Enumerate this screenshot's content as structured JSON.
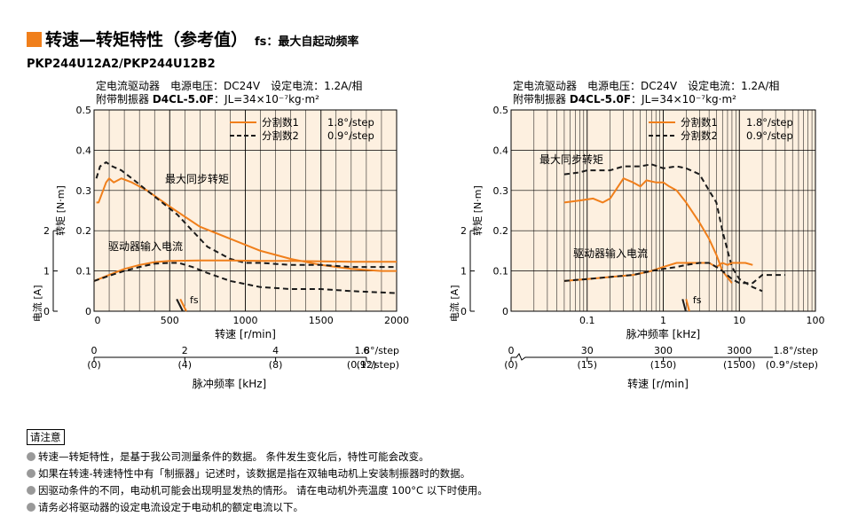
{
  "header": {
    "title": "转速—转矩特性（参考值）",
    "subtitle": "fs：最大自起动频率",
    "model": "PKP244U12A2/PKP244U12B2"
  },
  "conditions": {
    "line1": "定电流驱动器　电源电压：DC24V　设定电流：1.2A/相",
    "line2_prefix": "附带制振器",
    "line2_bold": "D4CL-5.0F",
    "line2_suffix": "：JL=34×10⁻⁷kg·m²"
  },
  "labels": {
    "torque_axis": "转矩 [N·m]",
    "current_axis": "电流 [A]",
    "speed_axis": "转速 [r/min]",
    "pulse_axis": "脉冲频率 [kHz]",
    "max_sync": "最大同步转矩",
    "driver_current": "驱动器输入电流",
    "fs": "fs",
    "legend1_name": "分割数1",
    "legend1_val": "1.8°/step",
    "legend2_name": "分割数2",
    "legend2_val": "0.9°/step"
  },
  "colors": {
    "accent": "#f07f1b",
    "plot_bg": "#fdf0e0",
    "series_solid": "#f07f1b",
    "series_dashed": "#1a1a1a"
  },
  "chart_data": [
    {
      "type": "line",
      "x_scale": "linear",
      "xlabel": "转速 [r/min]",
      "ylabel": "转矩 [N·m]",
      "xlim": [
        0,
        2000
      ],
      "ylim": [
        0,
        0.5
      ],
      "x_ticks": [
        "0",
        "500",
        "1000",
        "1500",
        "2000"
      ],
      "y_ticks": [
        "0",
        "0.1",
        "0.2",
        "0.3",
        "0.4",
        "0.5"
      ],
      "current_ticks": [
        "0",
        "1",
        "2"
      ],
      "secondary_axis": {
        "label": "脉冲频率 [kHz]",
        "ticks": [
          "0",
          "2",
          "4",
          "6"
        ],
        "ticks_sub": [
          "(0)",
          "(4)",
          "(8)",
          "(12)"
        ],
        "step_labels": [
          "1.8°/step",
          "(0.9°/step)"
        ]
      },
      "series": [
        {
          "name": "分割数1",
          "style": "solid",
          "kind": "torque",
          "x": [
            15,
            30,
            50,
            80,
            100,
            130,
            180,
            250,
            350,
            500,
            700,
            900,
            1100,
            1300,
            1500,
            1700,
            1900,
            2000
          ],
          "y": [
            0.27,
            0.27,
            0.29,
            0.32,
            0.33,
            0.32,
            0.33,
            0.32,
            0.3,
            0.26,
            0.21,
            0.18,
            0.15,
            0.13,
            0.115,
            0.105,
            0.1,
            0.1
          ]
        },
        {
          "name": "分割数2",
          "style": "dashed",
          "kind": "torque",
          "x": [
            15,
            40,
            80,
            120,
            180,
            250,
            350,
            450,
            550,
            650,
            750,
            900,
            1000,
            1100,
            1300,
            1500,
            1700,
            2000
          ],
          "y": [
            0.33,
            0.36,
            0.37,
            0.36,
            0.35,
            0.33,
            0.3,
            0.27,
            0.24,
            0.2,
            0.16,
            0.13,
            0.12,
            0.12,
            0.115,
            0.115,
            0.11,
            0.11
          ]
        },
        {
          "name": "分割数1",
          "style": "solid",
          "kind": "current",
          "x": [
            0,
            100,
            200,
            300,
            400,
            500,
            700,
            900,
            1100,
            1300,
            1500,
            1700,
            1900,
            2000
          ],
          "y": [
            0.075,
            0.09,
            0.105,
            0.115,
            0.122,
            0.125,
            0.126,
            0.126,
            0.125,
            0.125,
            0.124,
            0.123,
            0.123,
            0.123
          ]
        },
        {
          "name": "分割数2",
          "style": "dashed",
          "kind": "current",
          "x": [
            0,
            100,
            200,
            300,
            400,
            500,
            560,
            650,
            750,
            900,
            1100,
            1300,
            1500,
            1700,
            2000
          ],
          "y": [
            0.075,
            0.088,
            0.1,
            0.11,
            0.118,
            0.12,
            0.12,
            0.11,
            0.095,
            0.075,
            0.06,
            0.055,
            0.055,
            0.05,
            0.045
          ]
        }
      ],
      "fs_marker": {
        "x": [
          570,
          610
        ],
        "y": [
          0.03,
          0.0
        ]
      }
    },
    {
      "type": "line",
      "x_scale": "log",
      "xlabel": "脉冲频率 [kHz]",
      "ylabel": "转矩 [N·m]",
      "xlim": [
        0.01,
        100
      ],
      "ylim": [
        0,
        0.5
      ],
      "x_ticks": [
        "0.1",
        "1",
        "10",
        "100"
      ],
      "y_ticks": [
        "0",
        "0.1",
        "0.2",
        "0.3",
        "0.4",
        "0.5"
      ],
      "current_ticks": [
        "0",
        "1",
        "2"
      ],
      "secondary_axis": {
        "label": "转速 [r/min]",
        "ticks": [
          "0",
          "30",
          "300",
          "3000"
        ],
        "ticks_sub": [
          "(0)",
          "(15)",
          "(150)",
          "(1500)"
        ],
        "step_labels": [
          "1.8°/step",
          "(0.9°/step)"
        ]
      },
      "series": [
        {
          "name": "分割数1",
          "style": "solid",
          "kind": "torque",
          "x": [
            0.05,
            0.08,
            0.12,
            0.16,
            0.2,
            0.3,
            0.4,
            0.5,
            0.6,
            0.8,
            1,
            1.2,
            1.5,
            2,
            3,
            4,
            5,
            6,
            8
          ],
          "y": [
            0.27,
            0.275,
            0.28,
            0.27,
            0.28,
            0.33,
            0.32,
            0.31,
            0.325,
            0.32,
            0.32,
            0.31,
            0.3,
            0.27,
            0.22,
            0.18,
            0.14,
            0.1,
            0.07
          ]
        },
        {
          "name": "分割数2",
          "style": "dashed",
          "kind": "torque",
          "x": [
            0.05,
            0.08,
            0.1,
            0.15,
            0.2,
            0.3,
            0.4,
            0.5,
            0.7,
            1,
            1.5,
            2,
            3,
            4,
            5,
            6,
            7,
            8,
            10,
            15,
            20
          ],
          "y": [
            0.34,
            0.345,
            0.35,
            0.35,
            0.35,
            0.36,
            0.36,
            0.36,
            0.365,
            0.355,
            0.36,
            0.355,
            0.34,
            0.3,
            0.27,
            0.2,
            0.15,
            0.11,
            0.08,
            0.06,
            0.05
          ]
        },
        {
          "name": "分割数1",
          "style": "solid",
          "kind": "current",
          "x": [
            0.05,
            0.1,
            0.2,
            0.4,
            0.7,
            1,
            1.5,
            2,
            3,
            4,
            5,
            6,
            7,
            8,
            10,
            12,
            15
          ],
          "y": [
            0.075,
            0.08,
            0.085,
            0.09,
            0.1,
            0.11,
            0.12,
            0.12,
            0.12,
            0.12,
            0.11,
            0.12,
            0.115,
            0.12,
            0.12,
            0.12,
            0.115
          ]
        },
        {
          "name": "分割数2",
          "style": "dashed",
          "kind": "current",
          "x": [
            0.05,
            0.1,
            0.2,
            0.4,
            0.7,
            1,
            1.5,
            2,
            3,
            4,
            5,
            6,
            8,
            10,
            15,
            20,
            30,
            40
          ],
          "y": [
            0.075,
            0.08,
            0.085,
            0.09,
            0.1,
            0.105,
            0.11,
            0.115,
            0.12,
            0.12,
            0.11,
            0.1,
            0.08,
            0.07,
            0.07,
            0.09,
            0.09,
            0.09
          ]
        }
      ],
      "fs_marker": {
        "x": [
          2.0,
          2.2
        ],
        "y": [
          0.03,
          0.0
        ]
      }
    }
  ],
  "notes": {
    "header": "请注意",
    "items": [
      "转速—转矩特性，是基于我公司测量条件的数据。 条件发生变化后，特性可能会改变。",
      "如果在转速-转速特性中有「制振器」记述时，该数据是指在双轴电动机上安装制振器时的数据。",
      "因驱动条件的不同，电动机可能会出现明显发热的情形。 请在电动机外壳温度 100°C 以下时使用。",
      "请务必将驱动器的设定电流设定于电动机的额定电流以下。"
    ]
  }
}
